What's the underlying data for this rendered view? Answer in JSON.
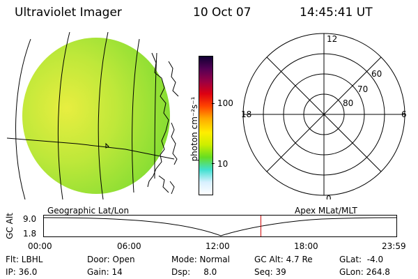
{
  "header": {
    "instrument": "Ultraviolet Imager",
    "date": "10 Oct 07",
    "time": "14:45:41 UT"
  },
  "colorbar": {
    "label": "photon cm⁻²s⁻¹",
    "ticks": [
      "100",
      "10"
    ],
    "scale": "log",
    "colors": [
      "#ffffff",
      "#d8f0ff",
      "#40e0d0",
      "#66dd22",
      "#ccee00",
      "#ffee00",
      "#ffaa00",
      "#ff4400",
      "#dd0011",
      "#990044",
      "#550055",
      "#110033"
    ]
  },
  "left_panel": {
    "label": "Geographic Lat/Lon",
    "disk_colors": [
      "#e8ee40",
      "#bfe83a",
      "#7fdc32"
    ]
  },
  "right_panel": {
    "label": "Apex  MLat/MLT",
    "mlt_labels": {
      "top": "12",
      "bottom": "0",
      "left": "18",
      "right": "6"
    },
    "lat_labels": [
      "60",
      "70",
      "80"
    ]
  },
  "timeline": {
    "axis_label": "GC Alt",
    "y_ticks": [
      "9.0",
      "1.8"
    ],
    "x_ticks": [
      "00:00",
      "06:00",
      "12:00",
      "18:00",
      "23:59"
    ],
    "marker_time_hours": 14.76,
    "marker_color": "#cc0000"
  },
  "info": {
    "filter": "Flt: LBHL",
    "ip": "IP: 36.0",
    "door": "Door: Open",
    "gain": "Gain: 14",
    "mode": "Mode: Normal",
    "dsp": "Dsp:     8.0",
    "gc_alt": "GC Alt: 4.7 Re",
    "seq": "Seq: 39",
    "glat": "GLat:  -4.0",
    "glon": "GLon: 264.8"
  }
}
